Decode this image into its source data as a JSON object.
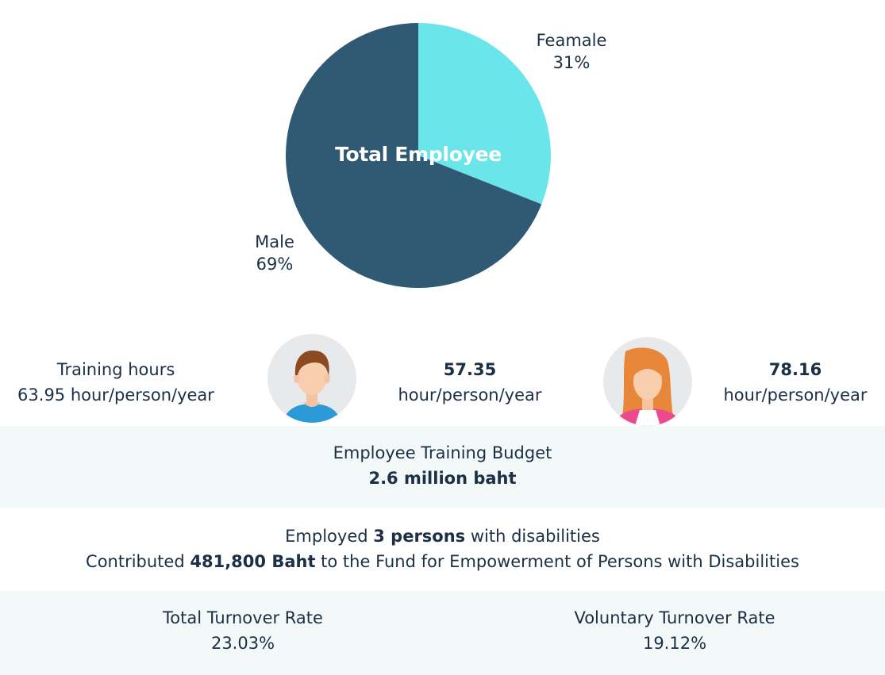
{
  "chart_data": {
    "type": "pie",
    "title": "Total Employee",
    "slices": [
      {
        "label": "Feamale",
        "value": 31,
        "value_label": "31%",
        "color": "#6ae5e9"
      },
      {
        "label": "Male",
        "value": 69,
        "value_label": "69%",
        "color": "#305a73"
      }
    ]
  },
  "training": {
    "label": "Training hours",
    "overall": "63.95 hour/person/year",
    "male_value": "57.35",
    "male_unit": "hour/person/year",
    "female_value": "78.16",
    "female_unit": "hour/person/year"
  },
  "budget": {
    "label": "Employee Training Budget",
    "value": "2.6 million baht"
  },
  "disabilities": {
    "line1_prefix": "Employed ",
    "line1_bold": "3 persons",
    "line1_suffix": " with disabilities",
    "line2_prefix": "Contributed ",
    "line2_bold": "481,800 Baht",
    "line2_suffix": " to the Fund for Empowerment of Persons with Disabilities"
  },
  "turnover": {
    "total_label": "Total Turnover Rate",
    "total_value": "23.03%",
    "voluntary_label": "Voluntary Turnover Rate",
    "voluntary_value": "19.12%"
  },
  "colors": {
    "band": "#f3f9f8",
    "text": "#1b2f45",
    "male_shirt": "#2d9ad8",
    "female_jacket": "#ec4a8e"
  },
  "icons": {
    "male": "male-avatar-icon",
    "female": "female-avatar-icon"
  }
}
